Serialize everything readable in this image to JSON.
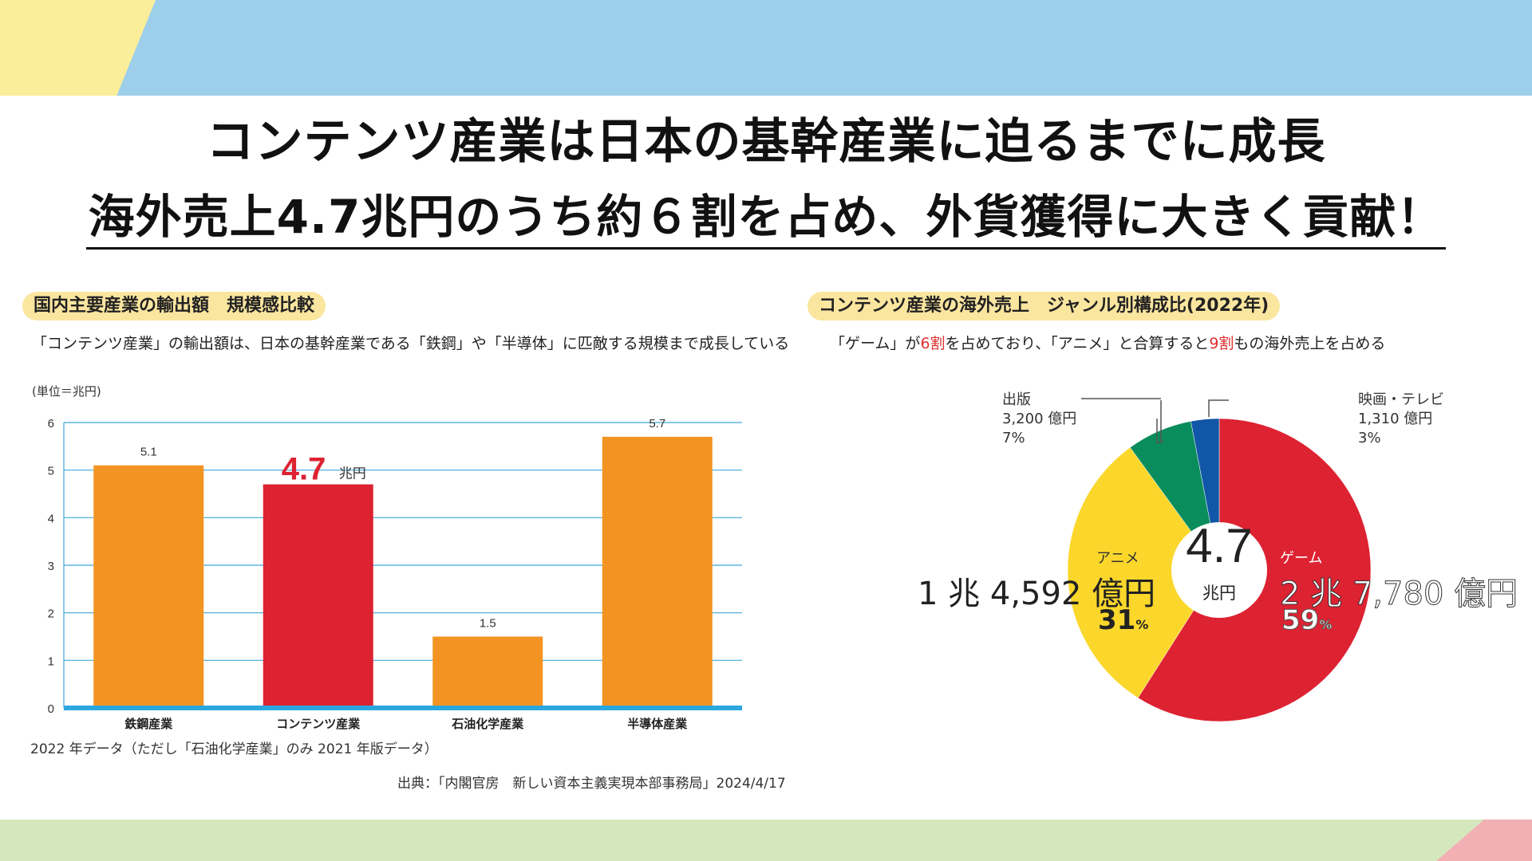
{
  "header": {
    "title_line1": "コンテンツ産業は日本の基幹産業に迫るまでに成長",
    "title_line2": "海外売上4.7兆円のうち約６割を占め、外貨獲得に大きく貢献！"
  },
  "left_panel": {
    "label": "国内主要産業の輸出額　規模感比較",
    "description": "「コンテンツ産業」の輸出額は、日本の基幹産業である「鉄鋼」や「半導体」に匹敵する規模まで成長している",
    "unit": "(単位＝兆円)",
    "highlight_value": "4.7",
    "highlight_unit": "兆円",
    "note": "2022 年データ（ただし「石油化学産業」のみ 2021 年版データ）",
    "source": "出典：「内閣官房　新しい資本主義実現本部事務局」2024/4/17"
  },
  "right_panel": {
    "label": "コンテンツ産業の海外売上　ジャンル別構成比(2022年)",
    "desc_part1": "「ゲーム」が",
    "desc_red1": "6割",
    "desc_part2": "を占めており、「アニメ」と合算すると",
    "desc_red2": "9割",
    "desc_part3": "もの海外売上を占める",
    "center_value": "4.7",
    "center_unit": "兆円"
  },
  "chart_data": [
    {
      "type": "bar",
      "categories": [
        "鉄鋼産業",
        "コンテンツ産業",
        "石油化学産業",
        "半導体産業"
      ],
      "values": [
        5.1,
        4.7,
        1.5,
        5.7
      ],
      "value_labels": [
        "5.1",
        "",
        "1.5",
        "5.7"
      ],
      "colors": [
        "#f39422",
        "#dd2232",
        "#f39422",
        "#f39422"
      ],
      "y_ticks": [
        "0",
        "1",
        "2",
        "3",
        "4",
        "5",
        "6"
      ],
      "ylim": [
        0,
        6
      ],
      "grid": true
    },
    {
      "type": "pie",
      "labels": [
        "ゲーム",
        "アニメ",
        "出版",
        "映画・テレビ"
      ],
      "values": [
        59,
        31,
        7,
        3
      ],
      "colors": [
        "#dd2232",
        "#fbd72c",
        "#0a8d5d",
        "#1157a8"
      ],
      "slices": [
        {
          "name": "ゲーム",
          "amount": "2 兆 7,780 億円",
          "percent": "59",
          "pct_sign": "%"
        },
        {
          "name": "アニメ",
          "amount": "1 兆 4,592 億円",
          "percent": "31",
          "pct_sign": "%"
        },
        {
          "name": "出版",
          "amount": "3,200 億円",
          "percent": "7%"
        },
        {
          "name": "映画・テレビ",
          "amount": "1,310 億円",
          "percent": "3%"
        }
      ]
    }
  ]
}
